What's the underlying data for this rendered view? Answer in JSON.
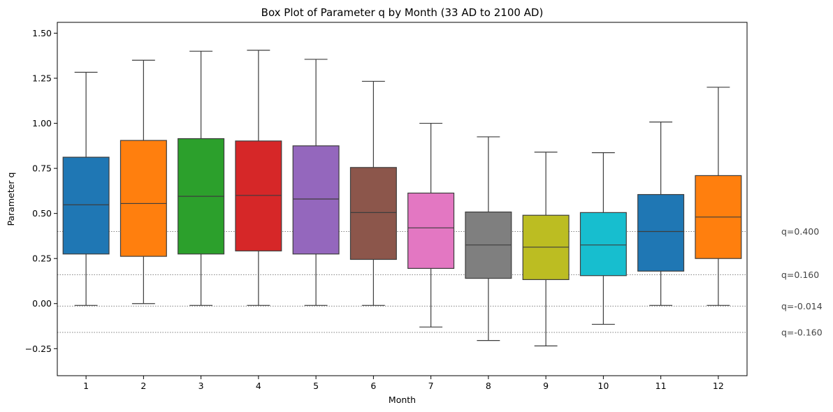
{
  "chart_data": {
    "type": "box",
    "title": "Box Plot of Parameter q by Month (33 AD to 2100 AD)",
    "xlabel": "Month",
    "ylabel": "Parameter q",
    "ylim": [
      -0.4,
      1.56
    ],
    "yticks": [
      -0.25,
      0.0,
      0.25,
      0.5,
      0.75,
      1.0,
      1.25,
      1.5
    ],
    "ytick_labels": [
      "−0.25",
      "0.00",
      "0.25",
      "0.50",
      "0.75",
      "1.00",
      "1.25",
      "1.50"
    ],
    "grid": false,
    "categories": [
      "1",
      "2",
      "3",
      "4",
      "5",
      "6",
      "7",
      "8",
      "9",
      "10",
      "11",
      "12"
    ],
    "boxes": [
      {
        "month": "1",
        "whisker_low": -0.01,
        "q1": 0.275,
        "median": 0.548,
        "q3": 0.812,
        "whisker_high": 1.283,
        "color": "#1f77b4"
      },
      {
        "month": "2",
        "whisker_low": 0.0,
        "q1": 0.262,
        "median": 0.555,
        "q3": 0.905,
        "whisker_high": 1.35,
        "color": "#ff7f0e"
      },
      {
        "month": "3",
        "whisker_low": -0.01,
        "q1": 0.275,
        "median": 0.595,
        "q3": 0.915,
        "whisker_high": 1.4,
        "color": "#2ca02c"
      },
      {
        "month": "4",
        "whisker_low": -0.01,
        "q1": 0.292,
        "median": 0.6,
        "q3": 0.902,
        "whisker_high": 1.405,
        "color": "#d62728"
      },
      {
        "month": "5",
        "whisker_low": -0.01,
        "q1": 0.275,
        "median": 0.58,
        "q3": 0.875,
        "whisker_high": 1.355,
        "color": "#9467bd"
      },
      {
        "month": "6",
        "whisker_low": -0.01,
        "q1": 0.245,
        "median": 0.505,
        "q3": 0.755,
        "whisker_high": 1.233,
        "color": "#8c564b"
      },
      {
        "month": "7",
        "whisker_low": -0.13,
        "q1": 0.195,
        "median": 0.42,
        "q3": 0.613,
        "whisker_high": 1.0,
        "color": "#e377c2"
      },
      {
        "month": "8",
        "whisker_low": -0.205,
        "q1": 0.14,
        "median": 0.325,
        "q3": 0.508,
        "whisker_high": 0.925,
        "color": "#7f7f7f"
      },
      {
        "month": "9",
        "whisker_low": -0.235,
        "q1": 0.133,
        "median": 0.313,
        "q3": 0.49,
        "whisker_high": 0.84,
        "color": "#bcbd22"
      },
      {
        "month": "10",
        "whisker_low": -0.115,
        "q1": 0.155,
        "median": 0.325,
        "q3": 0.505,
        "whisker_high": 0.837,
        "color": "#17becf"
      },
      {
        "month": "11",
        "whisker_low": -0.01,
        "q1": 0.18,
        "median": 0.4,
        "q3": 0.605,
        "whisker_high": 1.007,
        "color": "#1f77b4"
      },
      {
        "month": "12",
        "whisker_low": -0.01,
        "q1": 0.25,
        "median": 0.48,
        "q3": 0.71,
        "whisker_high": 1.2,
        "color": "#ff7f0e"
      }
    ],
    "reference_lines": [
      {
        "value": 0.4,
        "label": "q=0.400"
      },
      {
        "value": 0.16,
        "label": "q=0.160"
      },
      {
        "value": -0.014,
        "label": "q=-0.014"
      },
      {
        "value": -0.16,
        "label": "q=-0.160"
      }
    ],
    "reference_line_style": "dotted",
    "reference_line_color": "#808080"
  }
}
